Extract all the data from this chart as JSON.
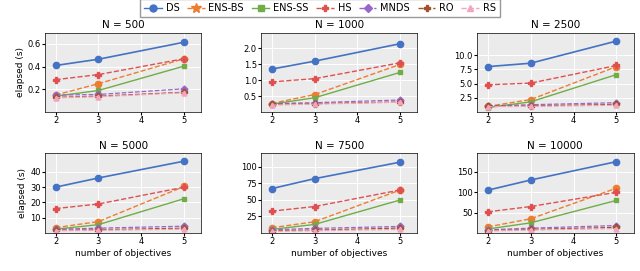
{
  "algorithms": [
    "DS",
    "ENS-BS",
    "ENS-SS",
    "HS",
    "MNDS",
    "RO",
    "RS"
  ],
  "colors": {
    "DS": "#4472C4",
    "ENS-BS": "#ED7D31",
    "ENS-SS": "#70AD47",
    "HS": "#E05050",
    "MNDS": "#9966CC",
    "RO": "#A0522D",
    "RS": "#F4A4C0"
  },
  "markers": {
    "DS": "o",
    "ENS-BS": "o",
    "ENS-SS": "s",
    "HS": "P",
    "MNDS": "D",
    "RO": "P",
    "RS": "^"
  },
  "linestyles": {
    "DS": "-",
    "ENS-BS": "--",
    "ENS-SS": "-",
    "HS": "--",
    "MNDS": "--",
    "RO": "--",
    "RS": "--"
  },
  "x": [
    2,
    3,
    5
  ],
  "data": {
    "500": {
      "DS": [
        0.41,
        0.465,
        0.615
      ],
      "ENS-BS": [
        0.15,
        0.25,
        0.47
      ],
      "ENS-SS": [
        0.14,
        0.19,
        0.405
      ],
      "HS": [
        0.285,
        0.33,
        0.47
      ],
      "MNDS": [
        0.15,
        0.155,
        0.205
      ],
      "RO": [
        0.13,
        0.14,
        0.175
      ],
      "RS": [
        0.125,
        0.135,
        0.17
      ]
    },
    "1000": {
      "DS": [
        1.35,
        1.6,
        2.15
      ],
      "ENS-BS": [
        0.27,
        0.55,
        1.5
      ],
      "ENS-SS": [
        0.25,
        0.45,
        1.25
      ],
      "HS": [
        0.95,
        1.05,
        1.55
      ],
      "MNDS": [
        0.27,
        0.295,
        0.38
      ],
      "RO": [
        0.24,
        0.265,
        0.32
      ],
      "RS": [
        0.22,
        0.25,
        0.31
      ]
    },
    "2500": {
      "DS": [
        8.0,
        8.6,
        12.5
      ],
      "ENS-BS": [
        1.0,
        2.2,
        8.0
      ],
      "ENS-SS": [
        0.8,
        1.8,
        6.6
      ],
      "HS": [
        4.8,
        5.1,
        8.2
      ],
      "MNDS": [
        1.1,
        1.3,
        1.65
      ],
      "RO": [
        1.0,
        1.1,
        1.35
      ],
      "RS": [
        0.95,
        1.0,
        1.2
      ]
    },
    "5000": {
      "DS": [
        30.0,
        36.0,
        47.0
      ],
      "ENS-BS": [
        3.5,
        7.5,
        30.5
      ],
      "ENS-SS": [
        2.5,
        5.5,
        22.5
      ],
      "HS": [
        16.0,
        19.0,
        30.0
      ],
      "MNDS": [
        2.5,
        3.2,
        4.5
      ],
      "RO": [
        1.8,
        2.2,
        3.2
      ],
      "RS": [
        1.5,
        1.8,
        2.5
      ]
    },
    "7500": {
      "DS": [
        67.0,
        82.0,
        107.0
      ],
      "ENS-BS": [
        8.0,
        17.0,
        65.0
      ],
      "ENS-SS": [
        5.5,
        13.0,
        50.0
      ],
      "HS": [
        33.0,
        40.0,
        65.0
      ],
      "MNDS": [
        5.0,
        7.0,
        10.0
      ],
      "RO": [
        3.5,
        4.5,
        7.5
      ],
      "RS": [
        2.5,
        3.5,
        5.5
      ]
    },
    "10000": {
      "DS": [
        105.0,
        130.0,
        175.0
      ],
      "ENS-BS": [
        15.0,
        35.0,
        110.0
      ],
      "ENS-SS": [
        10.0,
        25.0,
        80.0
      ],
      "HS": [
        52.0,
        65.0,
        100.0
      ],
      "MNDS": [
        8.0,
        12.0,
        18.5
      ],
      "RO": [
        6.0,
        9.0,
        14.0
      ],
      "RS": [
        5.0,
        7.5,
        11.0
      ]
    }
  },
  "ylims": {
    "500": [
      0.0,
      0.7
    ],
    "1000": [
      0.0,
      2.5
    ],
    "2500": [
      0.0,
      14.0
    ],
    "5000": [
      0.0,
      52.0
    ],
    "7500": [
      0.0,
      120.0
    ],
    "10000": [
      0.0,
      195.0
    ]
  },
  "yticks": {
    "500": [
      0.2,
      0.4,
      0.6
    ],
    "1000": [
      0.5,
      1.0,
      1.5,
      2.0
    ],
    "2500": [
      2.5,
      5.0,
      7.5,
      10.0
    ],
    "5000": [
      10.0,
      20.0,
      30.0,
      40.0
    ],
    "7500": [
      25.0,
      50.0,
      75.0,
      100.0
    ],
    "10000": [
      50.0,
      100.0,
      150.0
    ]
  },
  "layout": [
    [
      "500",
      "1000",
      "2500"
    ],
    [
      "5000",
      "7500",
      "10000"
    ]
  ],
  "xlabel": "number of objectives",
  "ylabel": "elapsed (s)",
  "title_fontsize": 7.5,
  "axis_fontsize": 6.5,
  "tick_fontsize": 6,
  "legend_fontsize": 7,
  "bg_color": "#ebebeb"
}
